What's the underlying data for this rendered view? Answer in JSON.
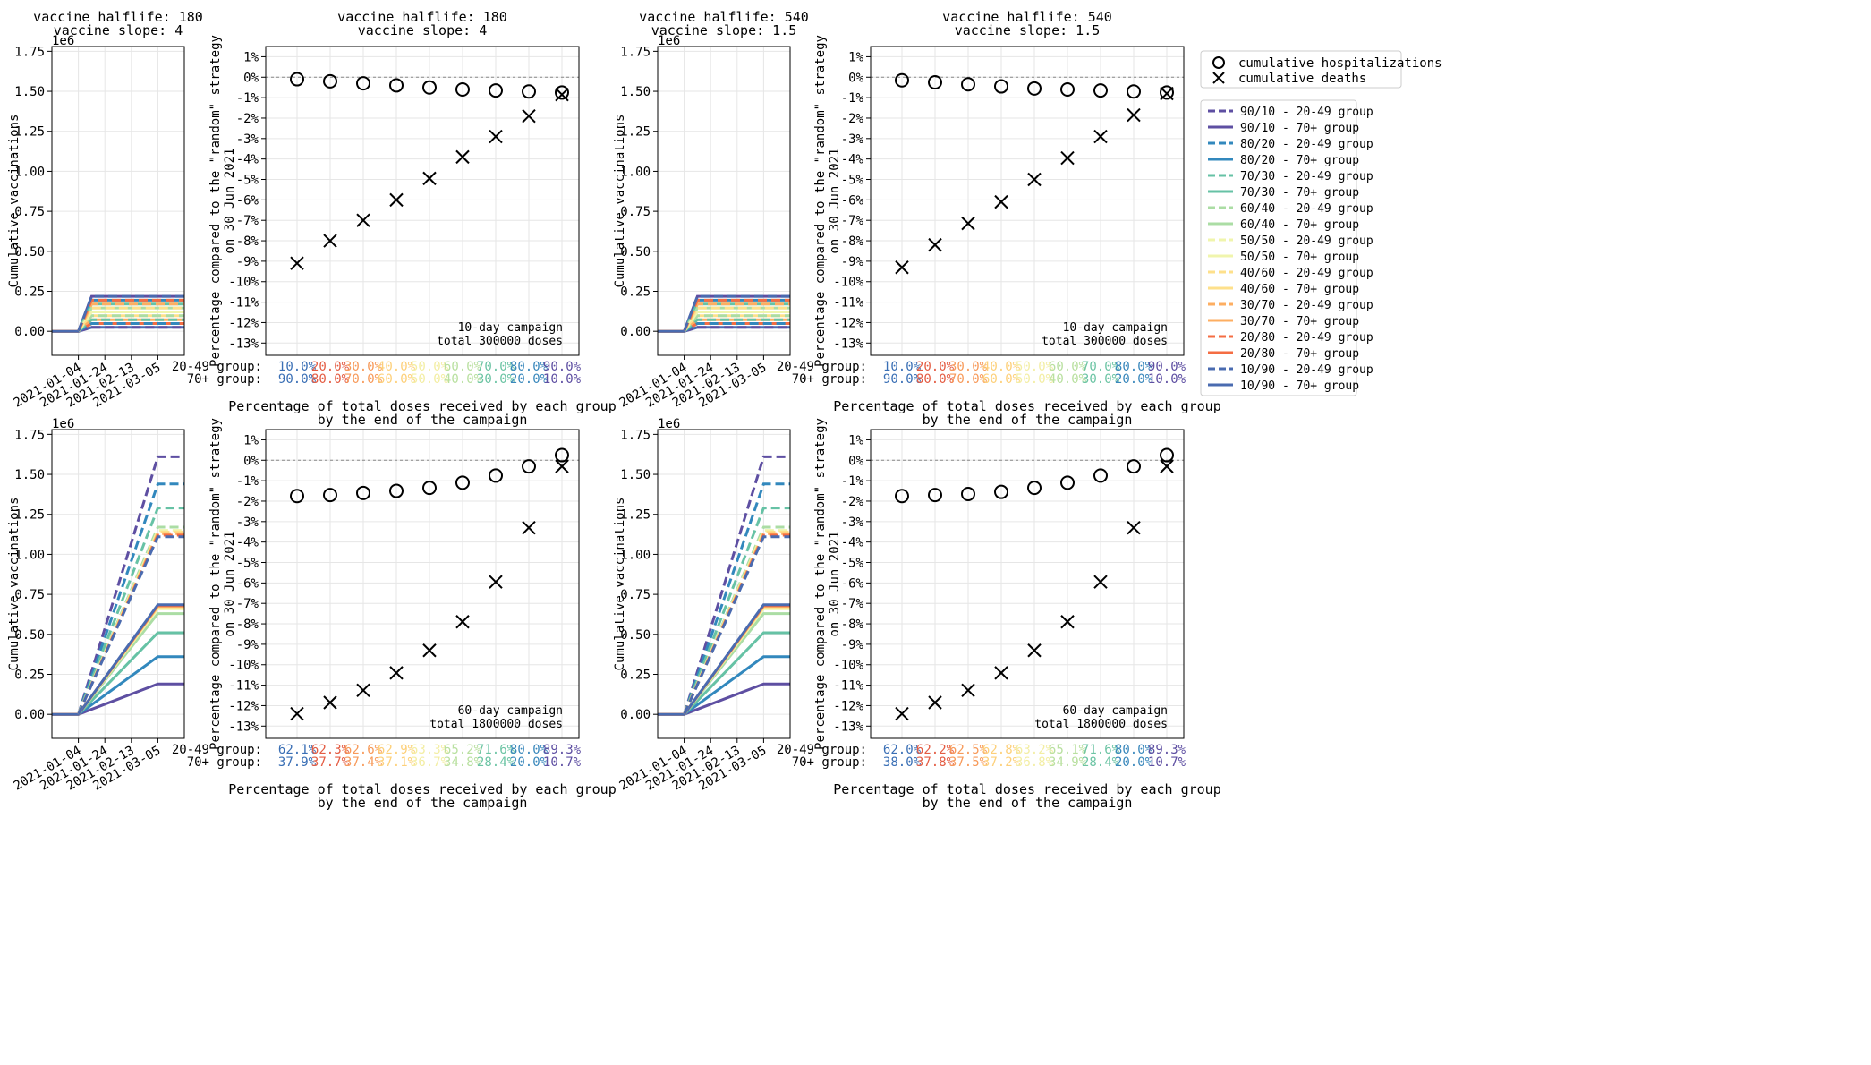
{
  "chart_data": [
    {
      "panel": "top-left",
      "type": "line",
      "title": [
        "vaccine halflife: 180",
        "vaccine slope: 4"
      ],
      "ylabel": "Cumulative vaccinations",
      "y_offset_label": "1e6",
      "ylim": [
        -0.15,
        1.78
      ],
      "yticks": [
        0,
        0.25,
        0.5,
        0.75,
        1.0,
        1.25,
        1.5,
        1.75
      ],
      "ytick_labels": [
        "0.00",
        "0.25",
        "0.50",
        "0.75",
        "1.00",
        "1.25",
        "1.50",
        "1.75"
      ],
      "xlim": [
        -20,
        80
      ],
      "xticks": [
        0,
        20,
        40,
        60
      ],
      "xtick_labels": [
        "2021-01-04",
        "2021-01-24",
        "2021-02-13",
        "2021-03-05"
      ],
      "grid": true,
      "start_x": 0,
      "end_x": 10,
      "last_x": 80,
      "series_finals": [
        0.0243,
        0.2187,
        0.0486,
        0.1944,
        0.0729,
        0.1701,
        0.0972,
        0.1458,
        0.1215,
        0.1215,
        0.1458,
        0.0972,
        0.1701,
        0.0729,
        0.1944,
        0.0486,
        0.2187,
        0.0243
      ]
    },
    {
      "panel": "top-mid-left",
      "type": "scatter",
      "title": [
        "vaccine halflife: 180",
        "vaccine slope: 4"
      ],
      "ylabel": [
        "Percentage compared to the \"random\" strategy",
        "on 30 Jun 2021"
      ],
      "xlabel": [
        "Percentage of total doses received by each group",
        "by the end of the campaign"
      ],
      "ylim": [
        -13.6,
        1.5
      ],
      "yticks": [
        1,
        0,
        -1,
        -2,
        -3,
        -4,
        -5,
        -6,
        -7,
        -8,
        -9,
        -10,
        -11,
        -12,
        -13
      ],
      "ytick_labels": [
        "1%",
        "0%",
        "-1%",
        "-2%",
        "-3%",
        "-4%",
        "-5%",
        "-6%",
        "-7%",
        "-8%",
        "-9%",
        "-10%",
        "-11%",
        "-12%",
        "-13%"
      ],
      "hosp": [
        -0.1,
        -0.2,
        -0.3,
        -0.4,
        -0.5,
        -0.6,
        -0.65,
        -0.7,
        -0.75
      ],
      "deaths": [
        -9.1,
        -8.0,
        -7.0,
        -6.0,
        -4.95,
        -3.9,
        -2.9,
        -1.9,
        -0.85
      ],
      "campaign_note": [
        "10-day campaign",
        "total 300000 doses"
      ],
      "group_labels": [
        "20-49 group:",
        "70+ group:"
      ],
      "young_share": [
        "10.0%",
        "20.0%",
        "30.0%",
        "40.0%",
        "50.0%",
        "60.0%",
        "70.0%",
        "80.0%",
        "90.0%"
      ],
      "old_share": [
        "90.0%",
        "80.0%",
        "70.0%",
        "60.0%",
        "50.0%",
        "40.0%",
        "30.0%",
        "20.0%",
        "10.0%"
      ]
    },
    {
      "panel": "top-mid-right",
      "type": "line",
      "title": [
        "vaccine halflife: 540",
        "vaccine slope: 1.5"
      ],
      "ylabel": "Cumulative vaccinations",
      "y_offset_label": "1e6",
      "ylim": [
        -0.15,
        1.78
      ],
      "yticks": [
        0,
        0.25,
        0.5,
        0.75,
        1.0,
        1.25,
        1.5,
        1.75
      ],
      "ytick_labels": [
        "0.00",
        "0.25",
        "0.50",
        "0.75",
        "1.00",
        "1.25",
        "1.50",
        "1.75"
      ],
      "xlim": [
        -20,
        80
      ],
      "xticks": [
        0,
        20,
        40,
        60
      ],
      "xtick_labels": [
        "2021-01-04",
        "2021-01-24",
        "2021-02-13",
        "2021-03-05"
      ],
      "grid": true,
      "start_x": 0,
      "end_x": 10,
      "last_x": 80,
      "series_finals": [
        0.0243,
        0.2187,
        0.0486,
        0.1944,
        0.0729,
        0.1701,
        0.0972,
        0.1458,
        0.1215,
        0.1215,
        0.1458,
        0.0972,
        0.1701,
        0.0729,
        0.1944,
        0.0486,
        0.2187,
        0.0243
      ]
    },
    {
      "panel": "top-right",
      "type": "scatter",
      "title": [
        "vaccine halflife: 540",
        "vaccine slope: 1.5"
      ],
      "ylabel": [
        "Percentage compared to the \"random\" strategy",
        "on 30 Jun 2021"
      ],
      "xlabel": [
        "Percentage of total doses received by each group",
        "by the end of the campaign"
      ],
      "ylim": [
        -13.6,
        1.5
      ],
      "yticks": [
        1,
        0,
        -1,
        -2,
        -3,
        -4,
        -5,
        -6,
        -7,
        -8,
        -9,
        -10,
        -11,
        -12,
        -13
      ],
      "ytick_labels": [
        "1%",
        "0%",
        "-1%",
        "-2%",
        "-3%",
        "-4%",
        "-5%",
        "-6%",
        "-7%",
        "-8%",
        "-9%",
        "-10%",
        "-11%",
        "-12%",
        "-13%"
      ],
      "hosp": [
        -0.15,
        -0.25,
        -0.35,
        -0.45,
        -0.55,
        -0.6,
        -0.65,
        -0.7,
        -0.75
      ],
      "deaths": [
        -9.3,
        -8.2,
        -7.15,
        -6.1,
        -5.0,
        -3.95,
        -2.9,
        -1.85,
        -0.8
      ],
      "campaign_note": [
        "10-day campaign",
        "total 300000 doses"
      ],
      "group_labels": [
        "20-49 group:",
        "70+ group:"
      ],
      "young_share": [
        "10.0%",
        "20.0%",
        "30.0%",
        "40.0%",
        "50.0%",
        "60.0%",
        "70.0%",
        "80.0%",
        "90.0%"
      ],
      "old_share": [
        "90.0%",
        "80.0%",
        "70.0%",
        "60.0%",
        "50.0%",
        "40.0%",
        "30.0%",
        "20.0%",
        "10.0%"
      ]
    },
    {
      "panel": "bottom-left",
      "type": "line",
      "title": [],
      "ylabel": "Cumulative vaccinations",
      "y_offset_label": "1e6",
      "ylim": [
        -0.15,
        1.78
      ],
      "yticks": [
        0,
        0.25,
        0.5,
        0.75,
        1.0,
        1.25,
        1.5,
        1.75
      ],
      "ytick_labels": [
        "0.00",
        "0.25",
        "0.50",
        "0.75",
        "1.00",
        "1.25",
        "1.50",
        "1.75"
      ],
      "xlim": [
        -20,
        80
      ],
      "xticks": [
        0,
        20,
        40,
        60
      ],
      "xtick_labels": [
        "2021-01-04",
        "2021-01-24",
        "2021-02-13",
        "2021-03-05"
      ],
      "grid": true,
      "start_x": 0,
      "end_x": 60,
      "last_x": 80,
      "series_finals": [
        1.61,
        0.19,
        1.44,
        0.36,
        1.29,
        0.51,
        1.17,
        0.63,
        1.15,
        0.66,
        1.14,
        0.67,
        1.13,
        0.675,
        1.12,
        0.68,
        1.11,
        0.685
      ]
    },
    {
      "panel": "bottom-mid-left",
      "type": "scatter",
      "title": [],
      "ylabel": [
        "Percentage compared to the \"random\" strategy",
        "on 30 Jun 2021"
      ],
      "xlabel": [
        "Percentage of total doses received by each group",
        "by the end of the campaign"
      ],
      "ylim": [
        -13.6,
        1.5
      ],
      "yticks": [
        1,
        0,
        -1,
        -2,
        -3,
        -4,
        -5,
        -6,
        -7,
        -8,
        -9,
        -10,
        -11,
        -12,
        -13
      ],
      "ytick_labels": [
        "1%",
        "0%",
        "-1%",
        "-2%",
        "-3%",
        "-4%",
        "-5%",
        "-6%",
        "-7%",
        "-8%",
        "-9%",
        "-10%",
        "-11%",
        "-12%",
        "-13%"
      ],
      "hosp": [
        -1.75,
        -1.7,
        -1.6,
        -1.5,
        -1.35,
        -1.1,
        -0.75,
        -0.3,
        0.25
      ],
      "deaths": [
        -12.4,
        -11.85,
        -11.25,
        -10.4,
        -9.3,
        -7.9,
        -5.95,
        -3.3,
        -0.3
      ],
      "campaign_note": [
        "60-day campaign",
        "total 1800000 doses"
      ],
      "group_labels": [
        "20-49 group:",
        "70+ group:"
      ],
      "young_share": [
        "62.1%",
        "62.3%",
        "62.6%",
        "62.9%",
        "63.3%",
        "65.2%",
        "71.6%",
        "80.0%",
        "89.3%"
      ],
      "old_share": [
        "37.9%",
        "37.7%",
        "37.4%",
        "37.1%",
        "36.7%",
        "34.8%",
        "28.4%",
        "20.0%",
        "10.7%"
      ]
    },
    {
      "panel": "bottom-mid-right",
      "type": "line",
      "title": [],
      "ylabel": "Cumulative vaccinations",
      "y_offset_label": "1e6",
      "ylim": [
        -0.15,
        1.78
      ],
      "yticks": [
        0,
        0.25,
        0.5,
        0.75,
        1.0,
        1.25,
        1.5,
        1.75
      ],
      "ytick_labels": [
        "0.00",
        "0.25",
        "0.50",
        "0.75",
        "1.00",
        "1.25",
        "1.50",
        "1.75"
      ],
      "xlim": [
        -20,
        80
      ],
      "xticks": [
        0,
        20,
        40,
        60
      ],
      "xtick_labels": [
        "2021-01-04",
        "2021-01-24",
        "2021-02-13",
        "2021-03-05"
      ],
      "grid": true,
      "start_x": 0,
      "end_x": 60,
      "last_x": 80,
      "series_finals": [
        1.61,
        0.19,
        1.44,
        0.36,
        1.29,
        0.51,
        1.17,
        0.63,
        1.15,
        0.66,
        1.14,
        0.67,
        1.13,
        0.675,
        1.12,
        0.68,
        1.11,
        0.685
      ]
    },
    {
      "panel": "bottom-right",
      "type": "scatter",
      "title": [],
      "ylabel": [
        "Percentage compared to the \"random\" strategy",
        "on 30 Jun 2021"
      ],
      "xlabel": [
        "Percentage of total doses received by each group",
        "by the end of the campaign"
      ],
      "ylim": [
        -13.6,
        1.5
      ],
      "yticks": [
        1,
        0,
        -1,
        -2,
        -3,
        -4,
        -5,
        -6,
        -7,
        -8,
        -9,
        -10,
        -11,
        -12,
        -13
      ],
      "ytick_labels": [
        "1%",
        "0%",
        "-1%",
        "-2%",
        "-3%",
        "-4%",
        "-5%",
        "-6%",
        "-7%",
        "-8%",
        "-9%",
        "-10%",
        "-11%",
        "-12%",
        "-13%"
      ],
      "hosp": [
        -1.75,
        -1.7,
        -1.65,
        -1.55,
        -1.35,
        -1.1,
        -0.75,
        -0.3,
        0.25
      ],
      "deaths": [
        -12.4,
        -11.85,
        -11.25,
        -10.4,
        -9.3,
        -7.9,
        -5.95,
        -3.3,
        -0.3
      ],
      "campaign_note": [
        "60-day campaign",
        "total 1800000 doses"
      ],
      "group_labels": [
        "20-49 group:",
        "70+ group:"
      ],
      "young_share": [
        "62.0%",
        "62.2%",
        "62.5%",
        "62.8%",
        "63.2%",
        "65.1%",
        "71.6%",
        "80.0%",
        "89.3%"
      ],
      "old_share": [
        "38.0%",
        "37.8%",
        "37.5%",
        "37.2%",
        "36.8%",
        "34.9%",
        "28.4%",
        "20.0%",
        "10.7%"
      ]
    }
  ],
  "legend_markers": [
    {
      "label": "cumulative hospitalizations",
      "marker": "circle"
    },
    {
      "label": "cumulative deaths",
      "marker": "x"
    }
  ],
  "legend_series": [
    {
      "label": "90/10 - 20-49 group",
      "color": "#5e4fa2",
      "dashed": true
    },
    {
      "label": "90/10 - 70+ group",
      "color": "#5e4fa2",
      "dashed": false
    },
    {
      "label": "80/20 - 20-49 group",
      "color": "#3288bd",
      "dashed": true
    },
    {
      "label": "80/20 - 70+ group",
      "color": "#3288bd",
      "dashed": false
    },
    {
      "label": "70/30 - 20-49 group",
      "color": "#66c2a5",
      "dashed": true
    },
    {
      "label": "70/30 - 70+ group",
      "color": "#66c2a5",
      "dashed": false
    },
    {
      "label": "60/40 - 20-49 group",
      "color": "#abdda4",
      "dashed": true
    },
    {
      "label": "60/40 - 70+ group",
      "color": "#abdda4",
      "dashed": false
    },
    {
      "label": "50/50 - 20-49 group",
      "color": "#f0f5ad",
      "dashed": true
    },
    {
      "label": "50/50 - 70+ group",
      "color": "#f0f5ad",
      "dashed": false
    },
    {
      "label": "40/60 - 20-49 group",
      "color": "#fee08b",
      "dashed": true
    },
    {
      "label": "40/60 - 70+ group",
      "color": "#fee08b",
      "dashed": false
    },
    {
      "label": "30/70 - 20-49 group",
      "color": "#fdae61",
      "dashed": true
    },
    {
      "label": "30/70 - 70+ group",
      "color": "#fdae61",
      "dashed": false
    },
    {
      "label": "20/80 - 20-49 group",
      "color": "#f46d43",
      "dashed": true
    },
    {
      "label": "20/80 - 70+ group",
      "color": "#f46d43",
      "dashed": false
    },
    {
      "label": "10/90 - 20-49 group",
      "color": "#4a6bb0",
      "dashed": true
    },
    {
      "label": "10/90 - 70+ group",
      "color": "#4a6bb0",
      "dashed": false
    }
  ],
  "share_colors": [
    "#3a6fb5",
    "#e45c43",
    "#f79a5a",
    "#fdd07a",
    "#f3eea4",
    "#b9e0a0",
    "#6cc4a4",
    "#3a88bc",
    "#5e4fa2"
  ]
}
